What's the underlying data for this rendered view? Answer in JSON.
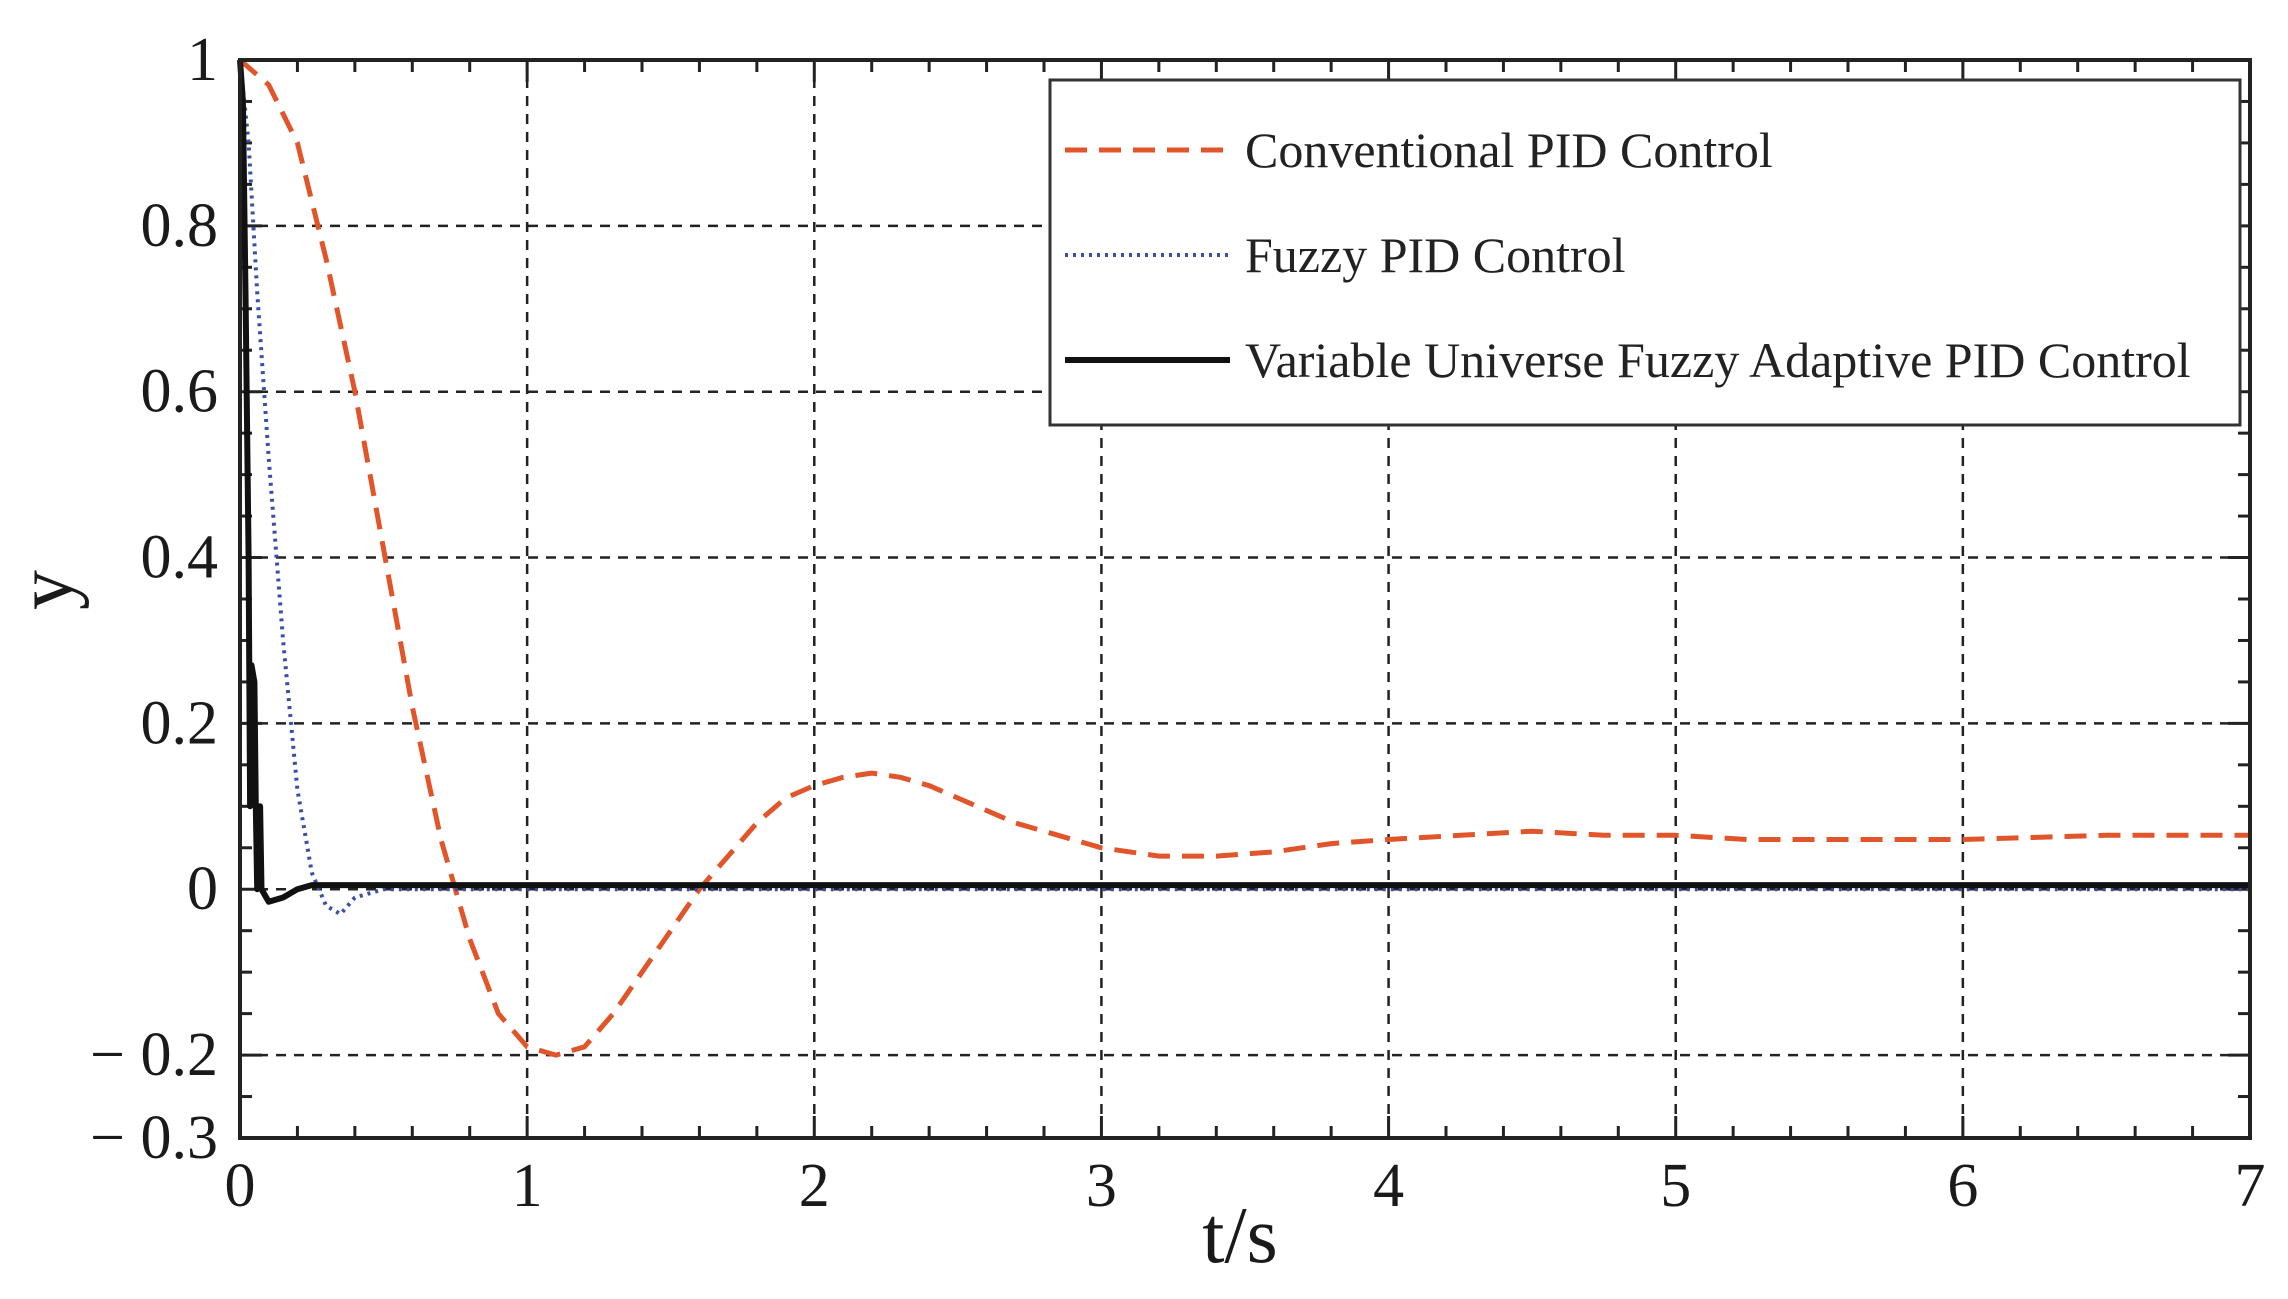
{
  "chart_data": {
    "type": "line",
    "title": "",
    "xlabel": "t/s",
    "ylabel": "y",
    "xlim": [
      0,
      7
    ],
    "ylim": [
      -0.3,
      1
    ],
    "x_ticks": [
      {
        "value": 0,
        "label": "0"
      },
      {
        "value": 1,
        "label": "1"
      },
      {
        "value": 2,
        "label": "2"
      },
      {
        "value": 3,
        "label": "3"
      },
      {
        "value": 4,
        "label": "4"
      },
      {
        "value": 5,
        "label": "5"
      },
      {
        "value": 6,
        "label": "6"
      },
      {
        "value": 7,
        "label": "7"
      }
    ],
    "y_ticks": [
      {
        "value": 1,
        "label": "1"
      },
      {
        "value": 0.8,
        "label": "0.8"
      },
      {
        "value": 0.6,
        "label": "0.6"
      },
      {
        "value": 0.4,
        "label": "0.4"
      },
      {
        "value": 0.2,
        "label": "0.2"
      },
      {
        "value": 0,
        "label": "0"
      },
      {
        "value": -0.2,
        "label": "− 0.2"
      },
      {
        "value": -0.3,
        "label": "− 0.3"
      }
    ],
    "grid": true,
    "grid_style": "dashed",
    "legend_position": "top-right",
    "series": [
      {
        "name": "Conventional PID Control",
        "color": "#e0552a",
        "style": "dashed",
        "points": [
          [
            0.0,
            1.0
          ],
          [
            0.1,
            0.97
          ],
          [
            0.2,
            0.9
          ],
          [
            0.3,
            0.76
          ],
          [
            0.4,
            0.6
          ],
          [
            0.5,
            0.41
          ],
          [
            0.6,
            0.22
          ],
          [
            0.7,
            0.06
          ],
          [
            0.8,
            -0.06
          ],
          [
            0.9,
            -0.15
          ],
          [
            1.0,
            -0.19
          ],
          [
            1.1,
            -0.2
          ],
          [
            1.2,
            -0.19
          ],
          [
            1.3,
            -0.15
          ],
          [
            1.4,
            -0.1
          ],
          [
            1.5,
            -0.05
          ],
          [
            1.6,
            0.0
          ],
          [
            1.7,
            0.04
          ],
          [
            1.8,
            0.08
          ],
          [
            1.9,
            0.11
          ],
          [
            2.0,
            0.125
          ],
          [
            2.1,
            0.135
          ],
          [
            2.2,
            0.14
          ],
          [
            2.3,
            0.135
          ],
          [
            2.4,
            0.125
          ],
          [
            2.5,
            0.11
          ],
          [
            2.6,
            0.095
          ],
          [
            2.7,
            0.08
          ],
          [
            2.8,
            0.07
          ],
          [
            2.9,
            0.06
          ],
          [
            3.0,
            0.05
          ],
          [
            3.2,
            0.04
          ],
          [
            3.4,
            0.04
          ],
          [
            3.6,
            0.045
          ],
          [
            3.8,
            0.055
          ],
          [
            4.0,
            0.06
          ],
          [
            4.25,
            0.065
          ],
          [
            4.5,
            0.07
          ],
          [
            4.75,
            0.065
          ],
          [
            5.0,
            0.065
          ],
          [
            5.25,
            0.06
          ],
          [
            5.5,
            0.06
          ],
          [
            6.0,
            0.06
          ],
          [
            6.5,
            0.065
          ],
          [
            7.0,
            0.065
          ]
        ]
      },
      {
        "name": "Fuzzy PID Control",
        "color": "#3a4fa8",
        "style": "dotted",
        "points": [
          [
            0.0,
            1.0
          ],
          [
            0.03,
            0.9
          ],
          [
            0.06,
            0.72
          ],
          [
            0.1,
            0.52
          ],
          [
            0.15,
            0.3
          ],
          [
            0.2,
            0.12
          ],
          [
            0.25,
            0.02
          ],
          [
            0.3,
            -0.02
          ],
          [
            0.35,
            -0.03
          ],
          [
            0.4,
            -0.01
          ],
          [
            0.5,
            0.0
          ],
          [
            7.0,
            0.0
          ]
        ]
      },
      {
        "name": "Variable Universe Fuzzy Adaptive PID Control",
        "color": "#111111",
        "style": "solid",
        "points": [
          [
            0.0,
            1.0
          ],
          [
            0.01,
            0.95
          ],
          [
            0.02,
            0.7
          ],
          [
            0.03,
            0.4
          ],
          [
            0.035,
            0.1
          ],
          [
            0.04,
            0.27
          ],
          [
            0.05,
            0.25
          ],
          [
            0.055,
            0.1
          ],
          [
            0.06,
            0.0
          ],
          [
            0.07,
            0.1
          ],
          [
            0.075,
            0.0
          ],
          [
            0.1,
            -0.015
          ],
          [
            0.15,
            -0.01
          ],
          [
            0.2,
            0.0
          ],
          [
            0.25,
            0.005
          ],
          [
            0.5,
            0.005
          ],
          [
            7.0,
            0.005
          ]
        ]
      }
    ]
  }
}
